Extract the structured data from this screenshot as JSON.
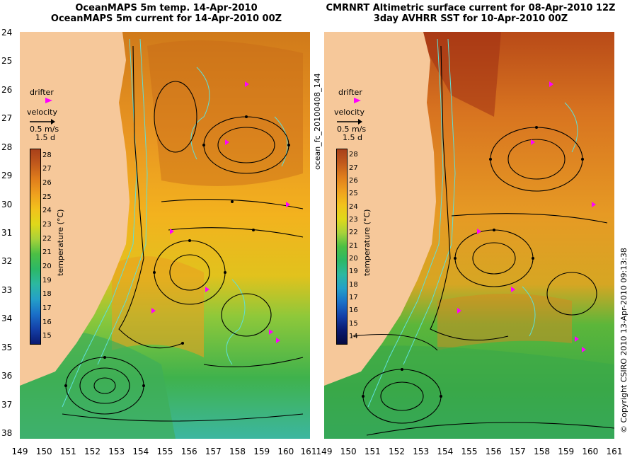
{
  "titles": {
    "left_line1": "OceanMAPS 5m temp. 14-Apr-2010",
    "left_line2": "OceanMAPS 5m current for 14-Apr-2010 00Z",
    "right_line1": "CMRNRT Altimetric surface current for 08-Apr-2010 12Z",
    "right_line2": "3day AVHRR SST for 10-Apr-2010 00Z"
  },
  "axes": {
    "lat_ticks": [
      "24",
      "25",
      "26",
      "27",
      "28",
      "29",
      "30",
      "31",
      "32",
      "33",
      "34",
      "35",
      "36",
      "37",
      "38"
    ],
    "lon_ticks": [
      "149",
      "150",
      "151",
      "152",
      "153",
      "154",
      "155",
      "156",
      "157",
      "158",
      "159",
      "160",
      "161"
    ]
  },
  "legend": {
    "drifter": "drifter",
    "velocity": "velocity",
    "speed": "0.5 m/s",
    "duration": "1.5 d",
    "cbar_label": "temperature (°C)",
    "left_cbar_ticks": [
      "28",
      "27",
      "26",
      "25",
      "24",
      "23",
      "22",
      "21",
      "20",
      "19",
      "18",
      "17",
      "16",
      "15"
    ],
    "right_cbar_ticks": [
      "28",
      "27",
      "26",
      "25",
      "24",
      "23",
      "22",
      "21",
      "20",
      "19",
      "18",
      "17",
      "16",
      "15",
      "14"
    ]
  },
  "side_text": {
    "file_id": "ocean_fc_20100408_144",
    "copyright": "© Copyright CSIRO 2010   13-Apr-2010 09:13:38"
  },
  "colors": {
    "land": "#f6c89a",
    "hot": "#b4471a",
    "warm": "#e88d1c",
    "mild": "#f2c01c",
    "cool": "#48b43c",
    "cold": "#38b8a0",
    "contour": "#5fe0d8",
    "drifter": "#ff00ff"
  }
}
